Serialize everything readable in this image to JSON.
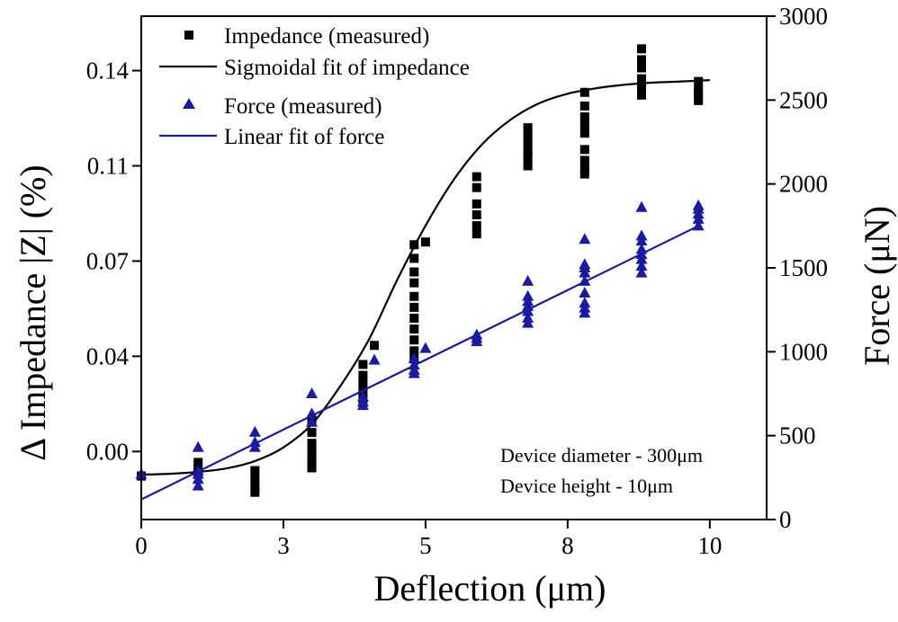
{
  "chart_data": {
    "type": "scatter",
    "xlabel": "Deflection (μm)",
    "ylabel_left": "Δ Impedance |Z| (%)",
    "ylabel_right": "Force (μN)",
    "xlim": [
      0,
      11
    ],
    "ylim_left": [
      -0.025,
      0.16
    ],
    "ylim_right": [
      0,
      3000
    ],
    "xticks": [
      0,
      2.5,
      5,
      7.5,
      10
    ],
    "xtick_labels": [
      "0",
      "3",
      "5",
      "8",
      "10"
    ],
    "yticks_left": [
      0.0,
      0.035,
      0.07,
      0.105,
      0.14
    ],
    "ytick_labels_left": [
      "0.00",
      "0.04",
      "0.07",
      "0.11",
      "0.14"
    ],
    "yticks_right": [
      0,
      500,
      1000,
      1500,
      2000,
      2500,
      3000
    ],
    "ytick_labels_right": [
      "0",
      "500",
      "1000",
      "1500",
      "2000",
      "2500",
      "3000"
    ],
    "legend_position": "top-left",
    "annotations": [
      "Device diameter - 300μm",
      "Device height - 10μm"
    ],
    "series": [
      {
        "name": "Impedance (measured)",
        "kind": "scatter",
        "marker": "square",
        "axis": "left",
        "color": "#000000",
        "x": [
          0.0,
          0.0,
          1.0,
          1.0,
          1.0,
          2.0,
          2.0,
          2.0,
          2.0,
          3.0,
          3.0,
          3.0,
          3.0,
          3.0,
          3.0,
          3.0,
          3.9,
          3.9,
          3.9,
          3.9,
          3.9,
          4.1,
          4.8,
          4.8,
          4.8,
          4.8,
          4.8,
          4.8,
          4.8,
          4.8,
          4.8,
          4.8,
          4.8,
          5.0,
          5.9,
          5.9,
          5.9,
          5.9,
          5.9,
          5.9,
          6.8,
          6.8,
          6.8,
          6.8,
          6.8,
          6.8,
          7.8,
          7.8,
          7.8,
          7.8,
          7.8,
          7.8,
          7.8,
          7.8,
          7.8,
          8.8,
          8.8,
          8.8,
          8.8,
          8.8,
          8.8,
          9.8,
          9.8,
          9.8,
          9.8
        ],
        "y": [
          -0.009,
          -0.009,
          -0.004,
          -0.006,
          -0.008,
          -0.007,
          -0.01,
          -0.013,
          -0.015,
          0.011,
          0.007,
          0.003,
          0.0,
          -0.004,
          -0.006,
          -0.003,
          0.022,
          0.025,
          0.028,
          0.032,
          0.019,
          0.039,
          0.076,
          0.071,
          0.066,
          0.062,
          0.057,
          0.053,
          0.049,
          0.045,
          0.041,
          0.037,
          0.034,
          0.077,
          0.101,
          0.097,
          0.091,
          0.087,
          0.083,
          0.08,
          0.119,
          0.116,
          0.113,
          0.11,
          0.108,
          0.105,
          0.132,
          0.127,
          0.123,
          0.12,
          0.117,
          0.111,
          0.107,
          0.104,
          0.102,
          0.148,
          0.144,
          0.141,
          0.137,
          0.134,
          0.131,
          0.136,
          0.133,
          0.131,
          0.129
        ]
      },
      {
        "name": "Sigmoidal fit of impedance",
        "kind": "line",
        "axis": "left",
        "color": "#000000",
        "x": [
          0.0,
          0.5,
          1.0,
          1.5,
          2.0,
          2.5,
          3.0,
          3.5,
          4.0,
          4.5,
          5.0,
          5.5,
          6.0,
          6.5,
          7.0,
          7.5,
          8.0,
          8.5,
          9.0,
          9.5,
          10.0
        ],
        "y": [
          -0.0085,
          -0.0082,
          -0.0075,
          -0.0062,
          -0.0035,
          0.0015,
          0.01,
          0.024,
          0.041,
          0.063,
          0.083,
          0.1,
          0.113,
          0.122,
          0.128,
          0.1315,
          0.1335,
          0.1348,
          0.1356,
          0.136,
          0.1365
        ]
      },
      {
        "name": "Force (measured)",
        "kind": "scatter",
        "marker": "triangle",
        "axis": "right",
        "color": "#1a1aa0",
        "x": [
          0.0,
          1.0,
          1.0,
          1.0,
          1.0,
          1.0,
          2.0,
          2.0,
          2.0,
          3.0,
          3.0,
          3.0,
          3.9,
          3.9,
          3.9,
          4.1,
          4.8,
          4.8,
          4.8,
          4.8,
          5.0,
          5.9,
          5.9,
          5.9,
          6.8,
          6.8,
          6.8,
          6.8,
          6.8,
          6.8,
          6.8,
          7.8,
          7.8,
          7.8,
          7.8,
          7.8,
          7.8,
          7.8,
          7.8,
          7.8,
          8.8,
          8.8,
          8.8,
          8.8,
          8.8,
          8.8,
          8.8,
          8.8,
          9.8,
          9.8,
          9.8,
          9.8,
          9.8
        ],
        "y": [
          270,
          200,
          240,
          270,
          290,
          430,
          430,
          460,
          520,
          580,
          630,
          750,
          680,
          700,
          730,
          950,
          870,
          890,
          920,
          960,
          1020,
          1060,
          1080,
          1100,
          1170,
          1200,
          1240,
          1270,
          1300,
          1330,
          1420,
          1230,
          1260,
          1290,
          1350,
          1420,
          1470,
          1500,
          1520,
          1670,
          1470,
          1510,
          1550,
          1580,
          1610,
          1660,
          1690,
          1860,
          1750,
          1790,
          1820,
          1850,
          1870
        ]
      },
      {
        "name": "Linear fit of force",
        "kind": "line",
        "axis": "right",
        "color": "#1a1aa0",
        "x": [
          0.0,
          9.8
        ],
        "y": [
          120,
          1750
        ]
      }
    ]
  }
}
